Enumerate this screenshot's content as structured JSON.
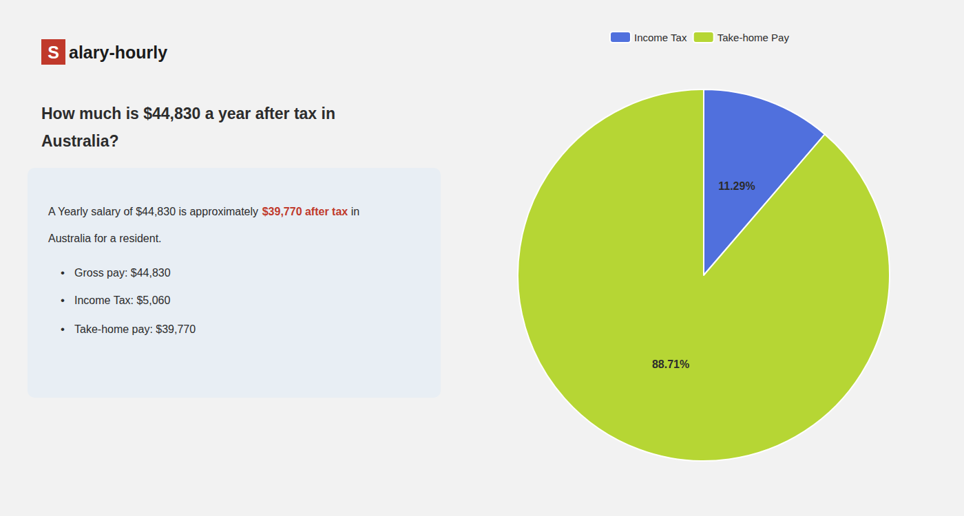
{
  "chart_data": {
    "type": "pie",
    "title": "How much is $44,830 a year after tax in\nAustralia?",
    "annotations": [
      "S",
      "alary-hourly",
      "A Yearly salary of $44,830 is approximately ",
      "$39,770 after tax",
      " in",
      "Australia for a resident.",
      "•",
      "Gross pay: $44,830",
      "•",
      "Income Tax: $5,060",
      "•",
      "Take-home pay: $39,770"
    ],
    "categories": [
      "Income Tax",
      "Take-home Pay"
    ],
    "values": [
      11.29,
      88.71
    ],
    "value_labels": [
      "11.29%",
      "88.71%"
    ],
    "data_labels": true,
    "legend": "top"
  }
}
